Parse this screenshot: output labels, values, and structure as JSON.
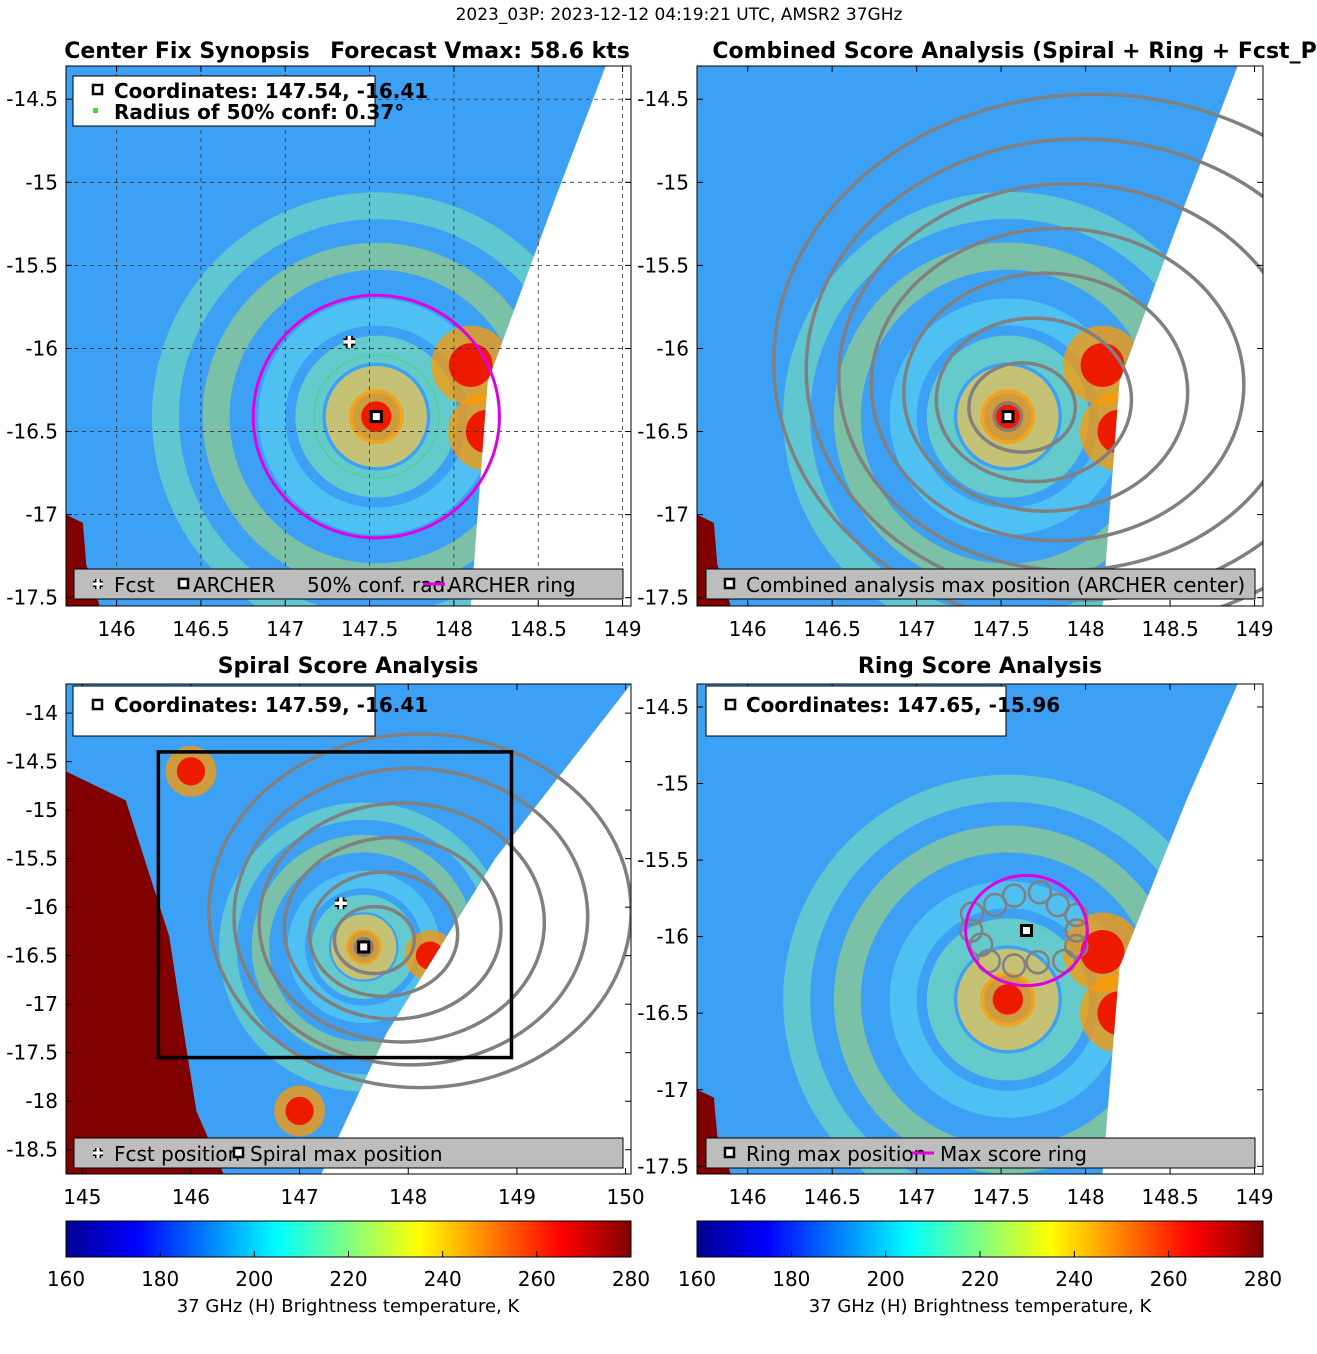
{
  "suptitle": "2023_03P: 2023-12-12 04:19:21 UTC, AMSR2 37GHz",
  "colormap": {
    "stops": [
      "#00008f",
      "#0000ff",
      "#0080ff",
      "#00ffff",
      "#80ff80",
      "#ffff00",
      "#ff8000",
      "#ff0000",
      "#800000"
    ],
    "cloud_color": "#3ca0f5",
    "warm_color": "#e8c02a",
    "land_color": "#800000"
  },
  "chart_data": [
    {
      "id": "synopsis",
      "type": "heatmap",
      "title_left": "Center Fix Synopsis",
      "title_right": "Forecast Vmax: 58.6 kts",
      "xlim": [
        145.7,
        149.05
      ],
      "ylim": [
        -17.55,
        -14.3
      ],
      "xticks": [
        146,
        146.5,
        147,
        147.5,
        148,
        148.5,
        149
      ],
      "yticks": [
        -14.5,
        -15,
        -15.5,
        -16,
        -16.5,
        -17,
        -17.5
      ],
      "grid": true,
      "swath_edge": [
        [
          148.9,
          -14.3
        ],
        [
          148.6,
          -15.1
        ],
        [
          148.2,
          -16.2
        ],
        [
          148.1,
          -17.55
        ]
      ],
      "warm_spots": [
        [
          147.54,
          -16.41
        ],
        [
          148.2,
          -16.5
        ],
        [
          148.1,
          -16.1
        ]
      ],
      "forecast_position": [
        147.38,
        -15.96
      ],
      "archer_center": [
        147.54,
        -16.41
      ],
      "ring_radius_deg": 0.73,
      "conf_radius_deg": 0.37,
      "info_lines": [
        "Coordinates: 147.54, -16.41",
        "Radius of 50% conf: 0.37°"
      ],
      "legend": [
        "Fcst",
        "ARCHER",
        "50% conf. rad.",
        "ARCHER ring"
      ],
      "legend_placement": "bottom"
    },
    {
      "id": "combined",
      "type": "heatmap",
      "title": "Combined Score Analysis (Spiral + Ring + Fcst_Pe",
      "xlim": [
        145.7,
        149.05
      ],
      "ylim": [
        -17.55,
        -14.3
      ],
      "xticks": [
        146,
        146.5,
        147,
        147.5,
        148,
        148.5,
        149
      ],
      "yticks": [
        -14.5,
        -15,
        -15.5,
        -16,
        -16.5,
        -17,
        -17.5
      ],
      "grid": false,
      "swath_edge": [
        [
          148.9,
          -14.3
        ],
        [
          148.6,
          -15.1
        ],
        [
          148.2,
          -16.2
        ],
        [
          148.1,
          -17.55
        ]
      ],
      "warm_spots": [
        [
          147.54,
          -16.41
        ],
        [
          148.2,
          -16.5
        ],
        [
          148.1,
          -16.1
        ]
      ],
      "center": [
        147.54,
        -16.41
      ],
      "contour_levels": [
        0.3,
        0.55,
        0.8,
        1.05,
        1.3,
        1.55,
        1.8
      ],
      "legend": [
        "Combined analysis max position (ARCHER center)"
      ],
      "legend_placement": "bottom"
    },
    {
      "id": "spiral",
      "type": "heatmap",
      "title": "Spiral Score Analysis",
      "xlim": [
        144.85,
        150.05
      ],
      "ylim": [
        -18.75,
        -13.7
      ],
      "xticks": [
        145,
        146,
        147,
        148,
        149,
        150
      ],
      "yticks": [
        -14,
        -14.5,
        -15,
        -15.5,
        -16,
        -16.5,
        -17,
        -17.5,
        -18,
        -18.5
      ],
      "grid": false,
      "swath_edge": [
        [
          150.05,
          -13.7
        ],
        [
          148.8,
          -15.5
        ],
        [
          147.8,
          -17.3
        ],
        [
          147.2,
          -18.75
        ]
      ],
      "warm_spots": [
        [
          147.59,
          -16.41
        ],
        [
          148.2,
          -16.5
        ],
        [
          147.0,
          -18.1
        ],
        [
          146.0,
          -14.6
        ]
      ],
      "forecast_position": [
        147.38,
        -15.96
      ],
      "spiral_max": [
        147.59,
        -16.41
      ],
      "search_box": {
        "x": [
          145.7,
          148.95
        ],
        "y": [
          -17.55,
          -14.4
        ]
      },
      "contour_levels": [
        0.35,
        0.65,
        0.95,
        1.25,
        1.55,
        1.85
      ],
      "info_lines": [
        "Coordinates: 147.59, -16.41"
      ],
      "legend": [
        "Fcst position",
        "Spiral max position"
      ],
      "legend_placement": "bottom"
    },
    {
      "id": "ring",
      "type": "heatmap",
      "title": "Ring Score Analysis",
      "xlim": [
        145.7,
        149.05
      ],
      "ylim": [
        -17.55,
        -14.35
      ],
      "xticks": [
        146,
        146.5,
        147,
        147.5,
        148,
        148.5,
        149
      ],
      "yticks": [
        -14.5,
        -15,
        -15.5,
        -16,
        -16.5,
        -17,
        -17.5
      ],
      "grid": false,
      "swath_edge": [
        [
          148.9,
          -14.35
        ],
        [
          148.6,
          -15.1
        ],
        [
          148.2,
          -16.2
        ],
        [
          148.1,
          -17.55
        ]
      ],
      "warm_spots": [
        [
          147.54,
          -16.41
        ],
        [
          148.2,
          -16.5
        ],
        [
          148.1,
          -16.1
        ]
      ],
      "ring_center": [
        147.65,
        -15.96
      ],
      "ring_radius_deg": 0.36,
      "info_lines": [
        "Coordinates: 147.65, -15.96"
      ],
      "legend": [
        "Ring max position",
        "Max score ring"
      ],
      "legend_placement": "bottom"
    }
  ],
  "colorbars": [
    {
      "label": "37 GHz (H) Brightness temperature, K",
      "min": 160,
      "max": 280,
      "ticks": [
        "160",
        "180",
        "200",
        "220",
        "240",
        "260",
        "280"
      ]
    },
    {
      "label": "37 GHz (H) Brightness temperature, K",
      "min": 160,
      "max": 280,
      "ticks": [
        "160",
        "180",
        "200",
        "220",
        "240",
        "260",
        "280"
      ]
    }
  ]
}
